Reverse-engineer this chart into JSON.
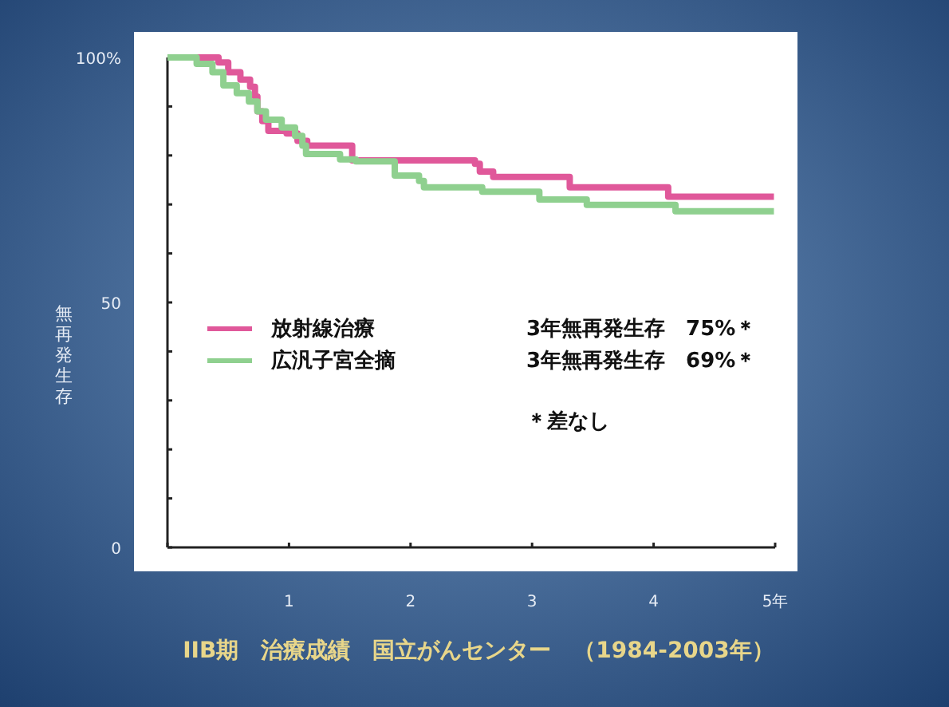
{
  "chart_data": {
    "type": "step",
    "title": "IIB期　治療成績　国立がんセンター　（1984-2003年）",
    "ylabel": "無再発生存",
    "xlim": [
      0,
      5
    ],
    "ylim": [
      0,
      100
    ],
    "xticks": [
      {
        "value": 0,
        "label": null
      },
      1,
      2,
      3,
      4,
      {
        "value": 5,
        "label": "5年"
      }
    ],
    "yticks": [
      0,
      {
        "value": 10,
        "label": null
      },
      {
        "value": 20,
        "label": null
      },
      {
        "value": 30,
        "label": null
      },
      {
        "value": 40,
        "label": null
      },
      50,
      {
        "value": 60,
        "label": null
      },
      {
        "value": 70,
        "label": null
      },
      {
        "value": 80,
        "label": null
      },
      {
        "value": 90,
        "label": null
      },
      {
        "value": 100,
        "label": "100%"
      }
    ],
    "legend": "center left",
    "series": [
      {
        "name": "放射線治療",
        "color": "#e0589a",
        "x": [
          0,
          0.4,
          0.42,
          0.5,
          0.6,
          0.68,
          0.72,
          0.74,
          0.78,
          0.83,
          0.98,
          1.07,
          1.15,
          1.52,
          2.53,
          2.57,
          2.68,
          3.31,
          4.12,
          4.99
        ],
        "values": [
          100,
          100,
          99,
          97,
          95.5,
          94,
          92,
          89,
          87,
          85,
          84.5,
          83,
          82,
          79,
          78.3,
          76.7,
          75.6,
          73.5,
          71.6,
          71.6
        ]
      },
      {
        "name": "広汎子宮全摘",
        "color": "#8fd08f",
        "x": [
          0,
          0.24,
          0.37,
          0.46,
          0.57,
          0.67,
          0.74,
          0.81,
          0.94,
          1.05,
          1.11,
          1.14,
          1.42,
          1.55,
          1.87,
          2.07,
          2.11,
          2.59,
          3.06,
          3.45,
          4.18,
          4.99
        ],
        "values": [
          100,
          98.7,
          97,
          94.3,
          92.7,
          91,
          89,
          87.3,
          85.7,
          84,
          82,
          80.3,
          79.2,
          78.8,
          75.9,
          74.8,
          73.5,
          72.6,
          71,
          69.9,
          68.6,
          68.6
        ]
      }
    ],
    "annotations": [
      "3年無再発生存　75%＊",
      "3年無再発生存　69%＊",
      "＊差なし"
    ]
  }
}
